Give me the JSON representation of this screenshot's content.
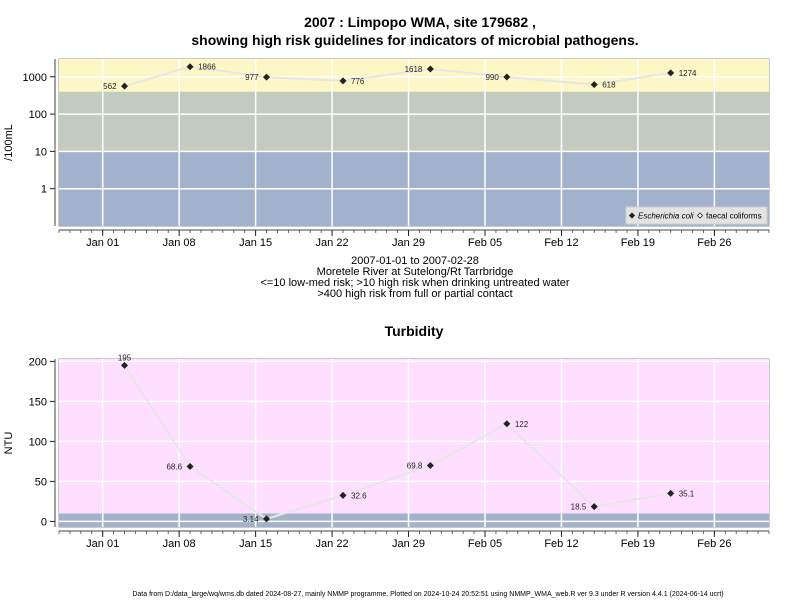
{
  "charts": {
    "main_title_line1": "2007 : Limpopo WMA, site 179682 ,",
    "main_title_line2": "showing high risk guidelines for indicators of microbial pathogens.",
    "caption": [
      "2007-01-01 to 2007-02-28",
      "Moretele River at Sutelong/Rt Tarrbridge",
      "<=10 low-med risk; >10 high risk when drinking untreated water",
      ">400 high risk from full or partial contact"
    ],
    "footer": "Data from D:/data_large/wq/wms.db dated 2024-08-27, mainly NMMP programme. Plotted on 2024-10-24 20:52:51 using NMMP_WMA_web.R ver 9.3 under R version 4.4.1 (2024-06-14 ucrt)"
  },
  "colors": {
    "band_high": "#fdf7c5",
    "band_mid": "#c3cbbf",
    "band_low": "#a3b2cc",
    "turbidity_bg": "#ffdfff",
    "line": "#e6e6e6",
    "marker": "#222222"
  },
  "chart_data": [
    {
      "type": "line",
      "title": "",
      "xlabel": "",
      "ylabel": "/100mL",
      "yscale": "log",
      "ylim": [
        0.1,
        3000
      ],
      "x_ticks": [
        {
          "date": "2007-01-01",
          "label": "Jan 01"
        },
        {
          "date": "2007-01-08",
          "label": "Jan 08"
        },
        {
          "date": "2007-01-15",
          "label": "Jan 15"
        },
        {
          "date": "2007-01-22",
          "label": "Jan 22"
        },
        {
          "date": "2007-01-29",
          "label": "Jan 29"
        },
        {
          "date": "2007-02-05",
          "label": "Feb 05"
        },
        {
          "date": "2007-02-12",
          "label": "Feb 12"
        },
        {
          "date": "2007-02-19",
          "label": "Feb 19"
        },
        {
          "date": "2007-02-26",
          "label": "Feb 26"
        }
      ],
      "y_ticks": [
        {
          "value": 1,
          "label": "1"
        },
        {
          "value": 10,
          "label": "10"
        },
        {
          "value": 100,
          "label": "100"
        },
        {
          "value": 1000,
          "label": "1000"
        }
      ],
      "bands": [
        {
          "from": 0.1,
          "to": 10,
          "color_key": "band_low"
        },
        {
          "from": 10,
          "to": 400,
          "color_key": "band_mid"
        },
        {
          "from": 400,
          "to": 3000,
          "color_key": "band_high"
        }
      ],
      "series": [
        {
          "name": "faecal coliforms",
          "points": [
            {
              "x": "2007-01-03",
              "y": 562,
              "label": "562",
              "label_side": "left"
            },
            {
              "x": "2007-01-09",
              "y": 1866,
              "label": "1866",
              "label_side": "right"
            },
            {
              "x": "2007-01-16",
              "y": 977,
              "label": "977",
              "label_side": "left"
            },
            {
              "x": "2007-01-23",
              "y": 776,
              "label": "776",
              "label_side": "right"
            },
            {
              "x": "2007-01-31",
              "y": 1618,
              "label": "1618",
              "label_side": "left"
            },
            {
              "x": "2007-02-07",
              "y": 990,
              "label": "990",
              "label_side": "left"
            },
            {
              "x": "2007-02-15",
              "y": 618,
              "label": "618",
              "label_side": "right"
            },
            {
              "x": "2007-02-22",
              "y": 1274,
              "label": "1274",
              "label_side": "right"
            }
          ]
        }
      ],
      "legend": {
        "placement": "bottom-right",
        "entries": [
          {
            "label": "Escherichia coli",
            "marker": "filled-diamond",
            "italic": true
          },
          {
            "label": "faecal coliforms",
            "marker": "open-diamond",
            "italic": false
          }
        ]
      },
      "grid": true
    },
    {
      "type": "line",
      "title": "Turbidity",
      "xlabel": "",
      "ylabel": "NTU",
      "yscale": "linear",
      "ylim": [
        -7,
        203
      ],
      "x_ticks": [
        {
          "date": "2007-01-01",
          "label": "Jan 01"
        },
        {
          "date": "2007-01-08",
          "label": "Jan 08"
        },
        {
          "date": "2007-01-15",
          "label": "Jan 15"
        },
        {
          "date": "2007-01-22",
          "label": "Jan 22"
        },
        {
          "date": "2007-01-29",
          "label": "Jan 29"
        },
        {
          "date": "2007-02-05",
          "label": "Feb 05"
        },
        {
          "date": "2007-02-12",
          "label": "Feb 12"
        },
        {
          "date": "2007-02-19",
          "label": "Feb 19"
        },
        {
          "date": "2007-02-26",
          "label": "Feb 26"
        }
      ],
      "y_ticks": [
        {
          "value": 0,
          "label": "0"
        },
        {
          "value": 50,
          "label": "50"
        },
        {
          "value": 100,
          "label": "100"
        },
        {
          "value": 150,
          "label": "150"
        },
        {
          "value": 200,
          "label": "200"
        }
      ],
      "bands": [
        {
          "from": -7,
          "to": 10,
          "color_key": "band_low"
        },
        {
          "from": 10,
          "to": 203,
          "color_key": "turbidity_bg"
        }
      ],
      "series": [
        {
          "name": "",
          "points": [
            {
              "x": "2007-01-03",
              "y": 195,
              "label": "195",
              "label_side": "above"
            },
            {
              "x": "2007-01-09",
              "y": 68.6,
              "label": "68.6",
              "label_side": "left"
            },
            {
              "x": "2007-01-16",
              "y": 3.14,
              "label": "3.14",
              "label_side": "left"
            },
            {
              "x": "2007-01-23",
              "y": 32.6,
              "label": "32.6",
              "label_side": "right"
            },
            {
              "x": "2007-01-31",
              "y": 69.8,
              "label": "69.8",
              "label_side": "left"
            },
            {
              "x": "2007-02-07",
              "y": 122,
              "label": "122",
              "label_side": "right"
            },
            {
              "x": "2007-02-15",
              "y": 18.5,
              "label": "18.5",
              "label_side": "left"
            },
            {
              "x": "2007-02-22",
              "y": 35.1,
              "label": "35.1",
              "label_side": "right"
            }
          ]
        }
      ],
      "grid": true
    }
  ]
}
